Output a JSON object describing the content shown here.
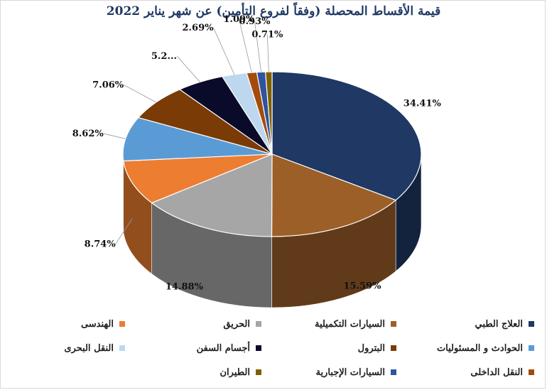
{
  "chart_data": {
    "type": "pie",
    "title": "قيمة الأقساط المحصلة (وفقاً لفروع التأمين) عن شهر يناير 2022",
    "unit": "%",
    "categories": [
      "العلاج الطبي",
      "السيارات التكميلية",
      "الحريق",
      "الهندسى",
      "الحوادث و المسئوليات",
      "البترول",
      "أجسام السفن",
      "النقل البحرى",
      "النقل الداخلى",
      "السيارات الإجبارية",
      "الطيران"
    ],
    "values": [
      34.41,
      15.59,
      14.88,
      8.74,
      8.62,
      7.06,
      5.2,
      2.69,
      1.09,
      0.93,
      0.71
    ],
    "data_labels": [
      "34.41%",
      "15.59%",
      "14.88%",
      "8.74%",
      "8.62%",
      "7.06%",
      "5.2...",
      "2.69%",
      "1.09%",
      "0.93%",
      "0.71%"
    ],
    "colors": [
      "#1f3864",
      "#9c5f28",
      "#a6a6a6",
      "#ed7d31",
      "#5b9bd5",
      "#7a3b06",
      "#0a0a2a",
      "#bdd7ee",
      "#a34c0c",
      "#2e54a0",
      "#7f6000"
    ],
    "legend_position": "bottom",
    "style": "3d"
  }
}
